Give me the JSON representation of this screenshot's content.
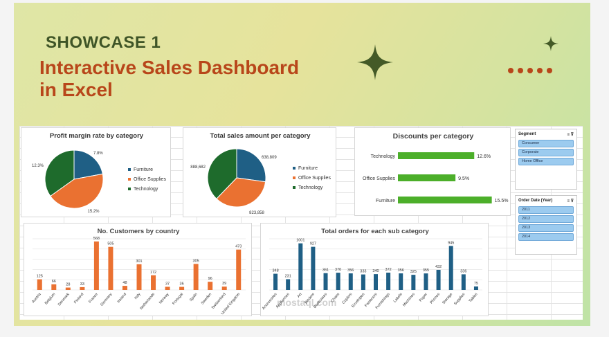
{
  "header": {
    "kicker": "SHOWCASE 1",
    "title_line1": "Interactive Sales Dashboard",
    "title_line2": "in Excel"
  },
  "colors": {
    "furniture": "#1f5f85",
    "office_supplies": "#ea7131",
    "technology": "#1e6b2c",
    "discount_bar": "#4caf2a",
    "customers_bar": "#ea7131",
    "orders_bar": "#1f5f85",
    "title_orange": "#b8461a",
    "title_green": "#3f5527"
  },
  "chart_data": [
    {
      "id": "profit",
      "type": "pie",
      "title": "Profit margin rate by category",
      "labels": [
        "Furniture",
        "Office Supplies",
        "Technology"
      ],
      "values": [
        7.8,
        15.2,
        12.3
      ],
      "value_labels": [
        "7.8%",
        "15.2%",
        "12.3%"
      ],
      "legend": "right"
    },
    {
      "id": "sales",
      "type": "pie",
      "title": "Total sales amount per category",
      "labels": [
        "Furniture",
        "Office Supplies",
        "Technology"
      ],
      "values": [
        638809,
        823858,
        888682
      ],
      "value_labels": [
        "638,809",
        "823,858",
        "888,682"
      ],
      "legend": "right"
    },
    {
      "id": "discounts",
      "type": "bar",
      "orientation": "horizontal",
      "title": "Discounts per category",
      "categories": [
        "Technology",
        "Office Supplies",
        "Furniture"
      ],
      "values": [
        12.6,
        9.5,
        15.5
      ],
      "value_labels": [
        "12.6%",
        "9.5%",
        "15.5%"
      ],
      "xlim": [
        0,
        16
      ]
    },
    {
      "id": "customers",
      "type": "bar",
      "title": "No. Customers by country",
      "categories": [
        "Austria",
        "Belgium",
        "Denmark",
        "Finland",
        "France",
        "Germany",
        "Ireland",
        "Italy",
        "Netherlands",
        "Norway",
        "Portugal",
        "Spain",
        "Sweden",
        "Switzerland",
        "United Kingdom"
      ],
      "values": [
        125,
        66,
        28,
        33,
        568,
        505,
        48,
        301,
        172,
        37,
        36,
        305,
        96,
        39,
        473
      ],
      "ylim": [
        0,
        600
      ],
      "grid": true
    },
    {
      "id": "orders",
      "type": "bar",
      "title": "Total orders for each sub category",
      "categories": [
        "Accessories",
        "Appliances",
        "Art",
        "Binders",
        "Bookcases",
        "Chairs",
        "Copiers",
        "Envelopes",
        "Fasteners",
        "Furnishings",
        "Labels",
        "Machines",
        "Paper",
        "Phones",
        "Storage",
        "Supplies",
        "Tables"
      ],
      "values": [
        348,
        231,
        1001,
        927,
        361,
        370,
        356,
        333,
        340,
        372,
        356,
        325,
        355,
        432,
        945,
        336,
        75
      ],
      "ylim": [
        0,
        1100
      ],
      "grid": true
    }
  ],
  "slicers": [
    {
      "title": "Segment",
      "items": [
        "Consumer",
        "Corporate",
        "Home Office"
      ]
    },
    {
      "title": "Order Date (Year)",
      "items": [
        "2011",
        "2012",
        "2013",
        "2014"
      ]
    }
  ],
  "watermark": "mostaql.com"
}
